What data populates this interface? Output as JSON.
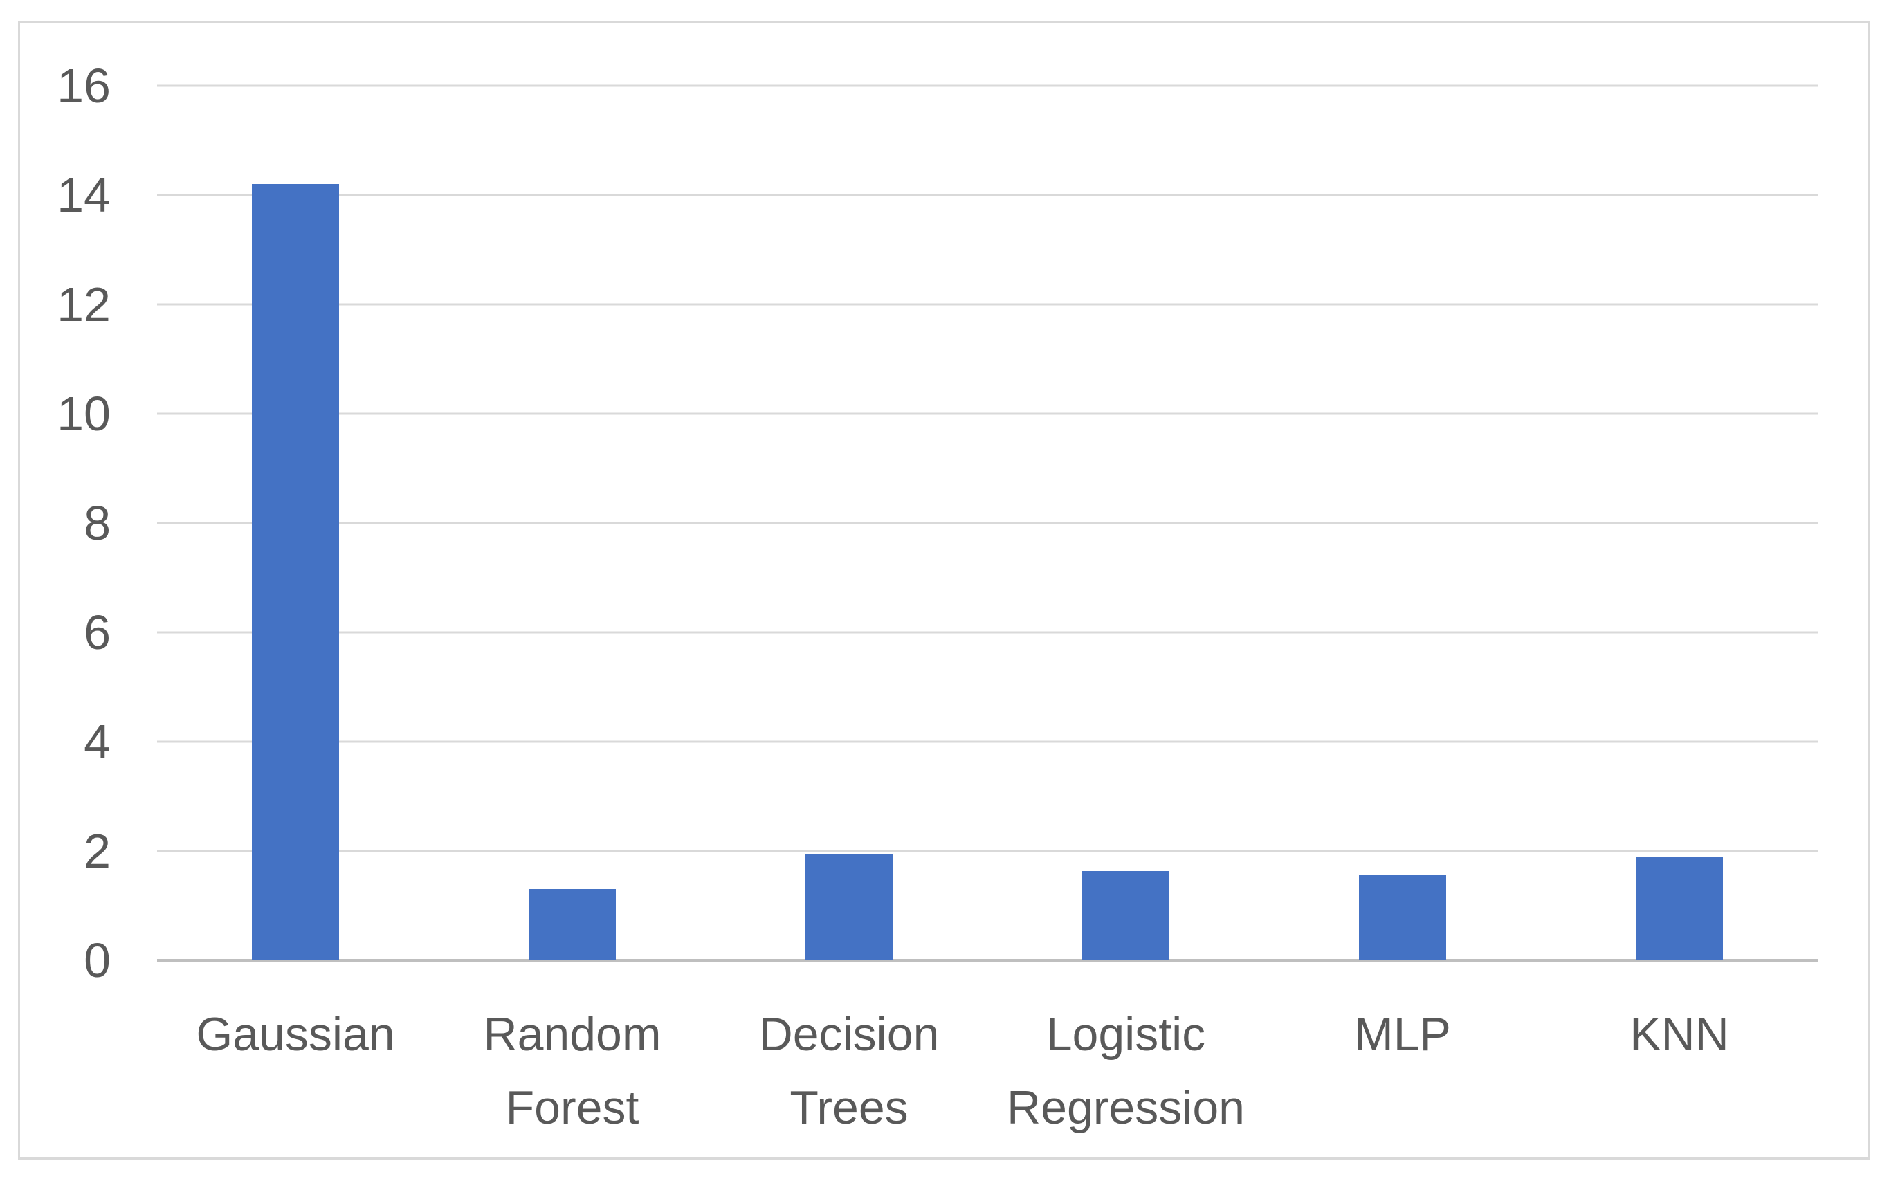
{
  "chart_data": {
    "type": "bar",
    "categories": [
      "Gaussian",
      "Random Forest",
      "Decision Trees",
      "Logistic Regression",
      "MLP",
      "KNN"
    ],
    "values": [
      14.2,
      1.3,
      1.95,
      1.63,
      1.57,
      1.88
    ],
    "title": "",
    "xlabel": "",
    "ylabel": "",
    "ylim": [
      0,
      16
    ],
    "yticks": [
      0,
      2,
      4,
      6,
      8,
      10,
      12,
      14,
      16
    ],
    "grid": true,
    "legend_position": "none",
    "bar_color": "#4472C4",
    "gridline_color": "#D9D9D9",
    "axis_line_color": "#BFBFBF",
    "tick_label_color": "#595959",
    "chart_border_color": "#D9D9D9",
    "background_color": "#FFFFFF"
  }
}
